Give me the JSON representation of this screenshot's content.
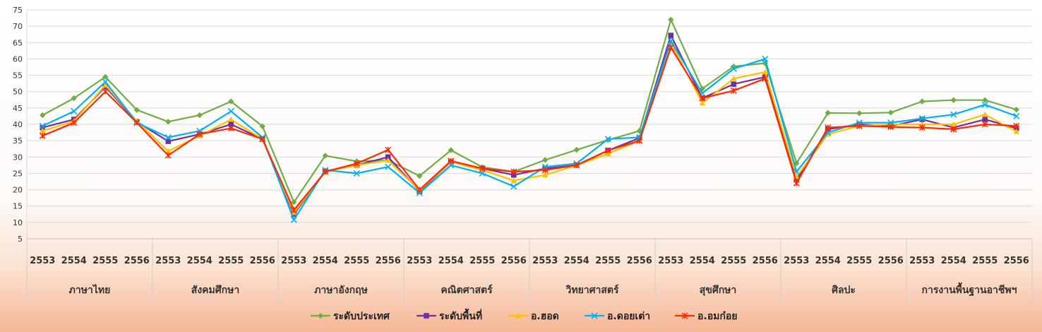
{
  "chart_data": {
    "type": "line",
    "ylim": [
      5,
      75
    ],
    "yticks": [
      5,
      10,
      15,
      20,
      25,
      30,
      35,
      40,
      45,
      50,
      55,
      60,
      65,
      70,
      75
    ],
    "grid": true,
    "legend_position": "bottom",
    "groups": [
      "ภาษาไทย",
      "สังคมศึกษา",
      "ภาษาอังกฤษ",
      "คณิตศาสตร์",
      "วิทยาศาสตร์",
      "สุขศึกษา",
      "ศิลปะ",
      "การงานพื้นฐานอาชีพฯ"
    ],
    "years": [
      "2553",
      "2554",
      "2555",
      "2556"
    ],
    "series": [
      {
        "name": "ระดับประเทศ",
        "color": "#70AD47",
        "marker": "diamond",
        "values": [
          42.8,
          48.0,
          54.5,
          44.4,
          40.8,
          42.8,
          47.0,
          39.4,
          16.2,
          30.4,
          28.7,
          29.0,
          24.2,
          32.1,
          26.9,
          25.5,
          29.1,
          32.2,
          35.2,
          38.0,
          72.0,
          50.9,
          57.7,
          58.7,
          28.1,
          43.5,
          43.4,
          43.6,
          47.0,
          47.4,
          47.4,
          44.5
        ]
      },
      {
        "name": "ระดับพื้นที่",
        "color": "#7030A0",
        "marker": "square",
        "values": [
          39.0,
          41.5,
          51.5,
          40.8,
          34.8,
          37.0,
          40.0,
          35.5,
          12.5,
          25.7,
          27.5,
          30.0,
          19.5,
          28.5,
          26.5,
          24.5,
          26.5,
          27.5,
          32.0,
          35.8,
          67.2,
          48.0,
          52.3,
          54.5,
          23.0,
          38.5,
          40.0,
          39.5,
          41.5,
          39.0,
          41.5,
          38.8
        ]
      },
      {
        "name": "อ.ฮอด",
        "color": "#FFC000",
        "marker": "triangle",
        "values": [
          38.0,
          41.0,
          52.0,
          41.0,
          31.8,
          36.5,
          41.5,
          35.5,
          13.0,
          25.5,
          27.5,
          29.0,
          19.8,
          28.5,
          26.0,
          22.8,
          24.5,
          27.5,
          31.0,
          35.0,
          65.0,
          46.5,
          54.0,
          56.0,
          24.0,
          37.0,
          39.5,
          40.0,
          40.0,
          40.0,
          43.0,
          37.8
        ]
      },
      {
        "name": "อ.ดอยเต่า",
        "color": "#00B0F0",
        "marker": "x",
        "values": [
          39.5,
          44.0,
          53.0,
          40.5,
          36.0,
          38.0,
          44.0,
          36.0,
          10.8,
          26.0,
          25.0,
          27.0,
          19.0,
          27.5,
          25.0,
          21.0,
          27.0,
          28.0,
          35.5,
          36.0,
          65.5,
          49.5,
          57.0,
          60.0,
          25.5,
          37.5,
          40.5,
          40.5,
          41.8,
          43.0,
          46.0,
          42.5
        ]
      },
      {
        "name": "อ.อมก๋อย",
        "color": "#FF2A00",
        "marker": "star",
        "values": [
          36.5,
          40.5,
          50.0,
          40.5,
          30.5,
          37.0,
          38.8,
          35.5,
          13.8,
          25.5,
          28.0,
          32.2,
          20.0,
          28.8,
          26.5,
          25.5,
          26.0,
          27.5,
          32.0,
          35.0,
          63.5,
          48.0,
          50.3,
          54.0,
          22.0,
          39.0,
          39.5,
          39.2,
          39.0,
          38.5,
          40.0,
          39.5
        ]
      }
    ]
  }
}
